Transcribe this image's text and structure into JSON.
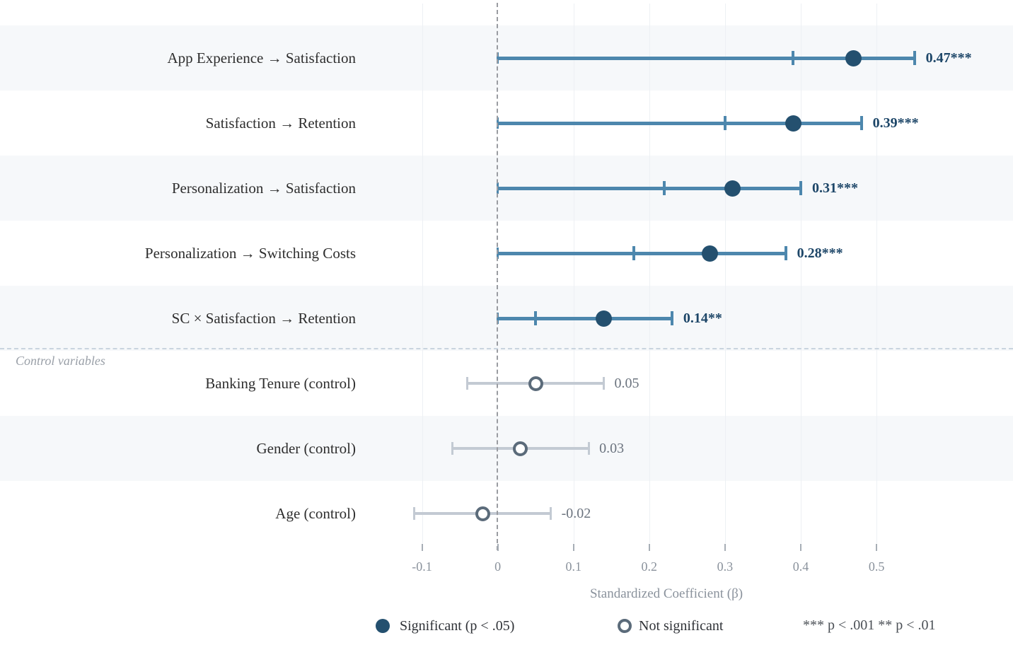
{
  "chart_data": {
    "type": "forest-coefficient-plot",
    "xlabel": "Standardized Coefficient (β)",
    "section_label": "Control variables",
    "x_ticks": [
      -0.1,
      0,
      0.1,
      0.2,
      0.3,
      0.4,
      0.5
    ],
    "x_tick_labels": [
      "-0.1",
      "0",
      "0.1",
      "0.2",
      "0.3",
      "0.4",
      "0.5"
    ],
    "xlim": [
      -0.2,
      0.68
    ],
    "zero_reference_line": 0,
    "grid": "vertical-light",
    "rows": [
      {
        "label": "App Experience → Satisfaction",
        "estimate": 0.47,
        "ci_low": 0.39,
        "ci_high": 0.55,
        "display": "0.47***",
        "significant": true,
        "striped": true
      },
      {
        "label": "Satisfaction → Retention",
        "estimate": 0.39,
        "ci_low": 0.3,
        "ci_high": 0.48,
        "display": "0.39***",
        "significant": true,
        "striped": false
      },
      {
        "label": "Personalization → Satisfaction",
        "estimate": 0.31,
        "ci_low": 0.22,
        "ci_high": 0.4,
        "display": "0.31***",
        "significant": true,
        "striped": true
      },
      {
        "label": "Personalization → Switching Costs",
        "estimate": 0.28,
        "ci_low": 0.18,
        "ci_high": 0.38,
        "display": "0.28***",
        "significant": true,
        "striped": false
      },
      {
        "label": "SC × Satisfaction → Retention",
        "estimate": 0.14,
        "ci_low": 0.05,
        "ci_high": 0.23,
        "display": "0.14**",
        "significant": true,
        "striped": true
      },
      {
        "label": "Banking Tenure (control)",
        "estimate": 0.05,
        "ci_low": -0.04,
        "ci_high": 0.14,
        "display": "0.05",
        "significant": false,
        "striped": false
      },
      {
        "label": "Gender (control)",
        "estimate": 0.03,
        "ci_low": -0.06,
        "ci_high": 0.12,
        "display": "0.03",
        "significant": false,
        "striped": true
      },
      {
        "label": "Age (control)",
        "estimate": -0.02,
        "ci_low": -0.11,
        "ci_high": 0.07,
        "display": "-0.02",
        "significant": false,
        "striped": false
      }
    ],
    "control_section_starts_at_row": 5,
    "legend": {
      "significant_label": "Significant (p < .05)",
      "not_significant_label": "Not significant",
      "note": "*** p < .001 ** p < .01"
    },
    "colors": {
      "significant_line": "#4d87ad",
      "significant_dot": "#24506f",
      "significant_value_text": "#1d4668",
      "control_line": "#c3cad3",
      "control_ring": "#5b6b7a",
      "control_value_text": "#6b737e",
      "row_stripe": "#f6f8fa",
      "zero_line": "#9a9ca1",
      "separator": "#c9d4df",
      "gridline": "#edf0f4",
      "tick_label": "#8a929c",
      "axis_title": "#8a929c",
      "row_label": "#2e2e2e",
      "section_label": "#9aa0a8",
      "legend_text": "#2f3237",
      "legend_note_text": "#4a4f55"
    }
  }
}
